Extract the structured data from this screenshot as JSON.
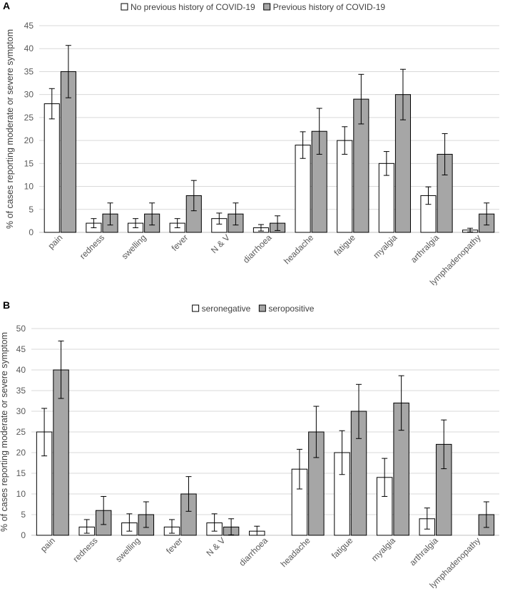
{
  "chart_data": [
    {
      "panel": "A",
      "type": "bar",
      "ylabel": "% of cases reporting moderate or severe symptom",
      "ylim": [
        0,
        45
      ],
      "yticks": [
        0,
        5,
        10,
        15,
        20,
        25,
        30,
        35,
        40,
        45
      ],
      "grid": true,
      "legend_position": "top",
      "categories": [
        "pain",
        "redness",
        "swelling",
        "fever",
        "N & V",
        "diarrhoea",
        "headache",
        "fatigue",
        "myalgia",
        "arthralgia",
        "lymphadenopathy"
      ],
      "series": [
        {
          "name": "No previous history of COVID-19",
          "color": "#ffffff",
          "values": [
            28,
            2,
            2,
            2,
            3,
            1,
            19,
            20,
            15,
            8,
            0.5
          ],
          "err_low": [
            24.7,
            1.0,
            1.0,
            1.0,
            1.8,
            0.3,
            16.1,
            17.0,
            12.4,
            6.1,
            0.1
          ],
          "err_high": [
            31.3,
            3.0,
            3.0,
            3.0,
            4.2,
            1.7,
            21.9,
            23.0,
            17.6,
            9.9,
            0.9
          ]
        },
        {
          "name": "Previous history of COVID-19",
          "color": "#a6a6a6",
          "values": [
            35,
            4,
            4,
            8,
            4,
            2,
            22,
            29,
            30,
            17,
            4
          ],
          "err_low": [
            29.3,
            1.6,
            1.6,
            4.7,
            1.6,
            0.4,
            17.0,
            23.6,
            24.5,
            12.5,
            1.6
          ],
          "err_high": [
            40.7,
            6.4,
            6.4,
            11.3,
            6.4,
            3.6,
            27.0,
            34.4,
            35.5,
            21.5,
            6.4
          ]
        }
      ]
    },
    {
      "panel": "B",
      "type": "bar",
      "ylabel": "% of cases reporting moderate or severe symptom",
      "ylim": [
        0,
        50
      ],
      "yticks": [
        0,
        5,
        10,
        15,
        20,
        25,
        30,
        35,
        40,
        45,
        50
      ],
      "grid": true,
      "legend_position": "top",
      "categories": [
        "pain",
        "redness",
        "swelling",
        "fever",
        "N & V",
        "diarrhoea",
        "headache",
        "fatigue",
        "myalgia",
        "arthralgia",
        "lymphadenopathy"
      ],
      "series": [
        {
          "name": "seronegative",
          "color": "#ffffff",
          "values": [
            25,
            2,
            3,
            2,
            3,
            1,
            16,
            20,
            14,
            4,
            0
          ],
          "err_low": [
            19.2,
            0.5,
            1.0,
            0.5,
            1.0,
            0.0,
            11.2,
            14.7,
            9.4,
            1.5,
            null
          ],
          "err_high": [
            30.7,
            3.8,
            5.2,
            3.8,
            5.2,
            2.2,
            20.8,
            25.3,
            18.6,
            6.6,
            null
          ]
        },
        {
          "name": "seropositive",
          "color": "#a6a6a6",
          "values": [
            40,
            6,
            5,
            10,
            2,
            0,
            25,
            30,
            32,
            22,
            5
          ],
          "err_low": [
            33.1,
            2.6,
            1.9,
            5.8,
            0.1,
            null,
            18.8,
            23.4,
            25.4,
            16.1,
            1.9
          ],
          "err_high": [
            47.0,
            9.4,
            8.1,
            14.2,
            4.0,
            null,
            31.2,
            36.5,
            38.6,
            27.9,
            8.1
          ]
        }
      ]
    }
  ]
}
